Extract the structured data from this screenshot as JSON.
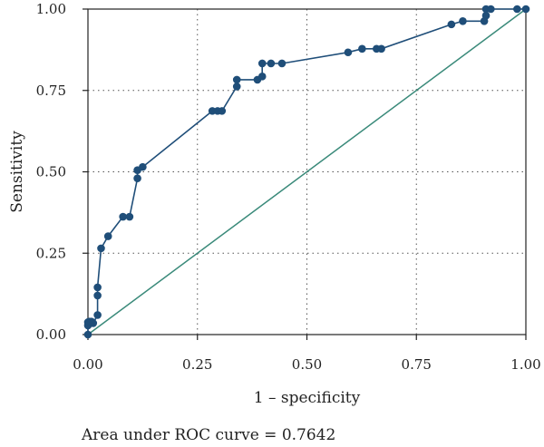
{
  "chart_data": {
    "type": "line",
    "xlabel": "1 – specificity",
    "ylabel": "Sensitivity",
    "xlim": [
      0,
      1
    ],
    "ylim": [
      0,
      1
    ],
    "x_ticks": [
      "0.00",
      "0.25",
      "0.50",
      "0.75",
      "1.00"
    ],
    "y_ticks": [
      "0.00",
      "0.25",
      "0.50",
      "0.75",
      "1.00"
    ],
    "grid": true,
    "caption": "Area under ROC curve = 0.7642",
    "colors": {
      "roc": "#1f4e79",
      "reference": "#3a8a7a"
    },
    "series": [
      {
        "type": "line-markers",
        "x": [
          0.0,
          0.0,
          0.0,
          0.003,
          0.008,
          0.012,
          0.022,
          0.022,
          0.022,
          0.03,
          0.046,
          0.08,
          0.095,
          0.113,
          0.113,
          0.125,
          0.284,
          0.296,
          0.306,
          0.34,
          0.34,
          0.387,
          0.398,
          0.398,
          0.418,
          0.443,
          0.594,
          0.626,
          0.659,
          0.67,
          0.83,
          0.856,
          0.905,
          0.909,
          0.909,
          0.92,
          0.98,
          1.0
        ],
        "y": [
          0.0,
          0.028,
          0.038,
          0.04,
          0.04,
          0.035,
          0.06,
          0.12,
          0.145,
          0.265,
          0.302,
          0.362,
          0.362,
          0.48,
          0.505,
          0.515,
          0.687,
          0.687,
          0.687,
          0.762,
          0.783,
          0.783,
          0.793,
          0.833,
          0.833,
          0.833,
          0.867,
          0.878,
          0.878,
          0.878,
          0.953,
          0.963,
          0.963,
          0.98,
          1.0,
          1.0,
          1.0,
          1.0
        ]
      },
      {
        "type": "reference",
        "x": [
          0,
          1
        ],
        "y": [
          0,
          1
        ]
      }
    ]
  }
}
